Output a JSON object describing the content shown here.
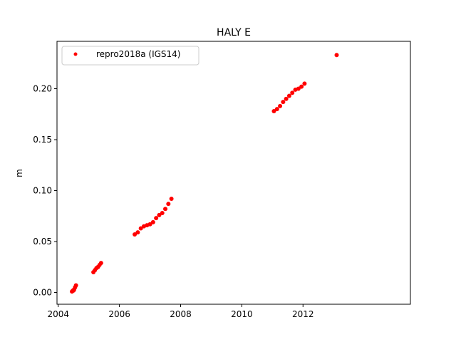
{
  "chart_data": {
    "type": "scatter",
    "title": "HALY E",
    "xlabel": "",
    "ylabel": "m",
    "xlim": [
      2003.96,
      2015.51
    ],
    "ylim": [
      -0.0115,
      0.2465
    ],
    "x_ticks": [
      2004,
      2006,
      2008,
      2010,
      2012
    ],
    "x_tick_labels": [
      "2004",
      "2006",
      "2008",
      "2010",
      "2012"
    ],
    "y_ticks": [
      0.0,
      0.05,
      0.1,
      0.15,
      0.2
    ],
    "y_tick_labels": [
      "0.00",
      "0.05",
      "0.10",
      "0.15",
      "0.20"
    ],
    "grid": false,
    "legend": {
      "position": "top-left",
      "entries": [
        "repro2018a (IGS14)"
      ]
    },
    "series": [
      {
        "name": "repro2018a (IGS14)",
        "color": "#ff0000",
        "marker": "dot",
        "points": [
          [
            2004.45,
            0.001
          ],
          [
            2004.48,
            0.002
          ],
          [
            2004.5,
            0.002
          ],
          [
            2004.52,
            0.003
          ],
          [
            2004.55,
            0.005
          ],
          [
            2004.58,
            0.007
          ],
          [
            2005.15,
            0.02
          ],
          [
            2005.2,
            0.022
          ],
          [
            2005.25,
            0.024
          ],
          [
            2005.3,
            0.025
          ],
          [
            2005.35,
            0.027
          ],
          [
            2005.4,
            0.029
          ],
          [
            2006.5,
            0.057
          ],
          [
            2006.6,
            0.059
          ],
          [
            2006.7,
            0.063
          ],
          [
            2006.8,
            0.065
          ],
          [
            2006.9,
            0.066
          ],
          [
            2007.0,
            0.067
          ],
          [
            2007.1,
            0.069
          ],
          [
            2007.2,
            0.073
          ],
          [
            2007.3,
            0.076
          ],
          [
            2007.4,
            0.078
          ],
          [
            2007.5,
            0.082
          ],
          [
            2007.6,
            0.087
          ],
          [
            2007.7,
            0.092
          ],
          [
            2011.05,
            0.178
          ],
          [
            2011.15,
            0.18
          ],
          [
            2011.25,
            0.183
          ],
          [
            2011.35,
            0.187
          ],
          [
            2011.45,
            0.19
          ],
          [
            2011.55,
            0.193
          ],
          [
            2011.65,
            0.196
          ],
          [
            2011.75,
            0.199
          ],
          [
            2011.85,
            0.2
          ],
          [
            2011.95,
            0.202
          ],
          [
            2012.05,
            0.205
          ],
          [
            2013.1,
            0.233
          ]
        ]
      }
    ]
  }
}
